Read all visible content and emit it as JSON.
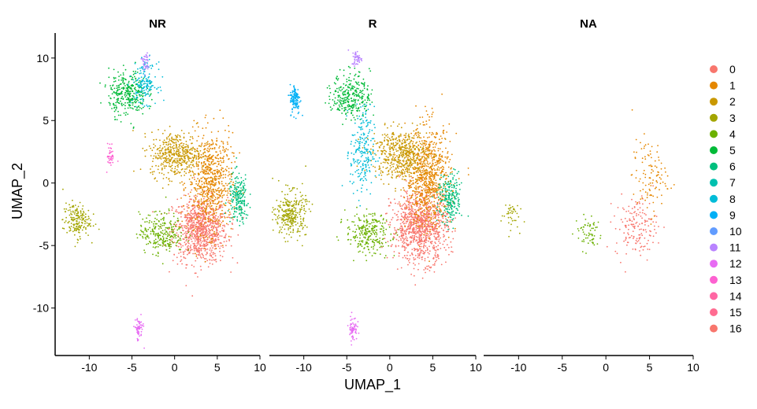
{
  "chart_data": {
    "type": "scatter",
    "subtype": "UMAP faceted by group",
    "xlabel": "UMAP_1",
    "ylabel": "UMAP_2",
    "xlim": [
      -14,
      10
    ],
    "ylim": [
      -13.8,
      12
    ],
    "x_ticks": [
      -10,
      -5,
      0,
      5,
      10
    ],
    "y_ticks": [
      -10,
      -5,
      0,
      5,
      10
    ],
    "facets": [
      "NR",
      "R",
      "NA"
    ],
    "legend": {
      "position": "right",
      "clusters": [
        {
          "label": "0",
          "color": "#F8766D"
        },
        {
          "label": "1",
          "color": "#E58700"
        },
        {
          "label": "2",
          "color": "#C99800"
        },
        {
          "label": "3",
          "color": "#A3A500"
        },
        {
          "label": "4",
          "color": "#6BB100"
        },
        {
          "label": "5",
          "color": "#00BA38"
        },
        {
          "label": "6",
          "color": "#00BF7D"
        },
        {
          "label": "7",
          "color": "#00C0AF"
        },
        {
          "label": "8",
          "color": "#00BCD8"
        },
        {
          "label": "9",
          "color": "#00B0F6"
        },
        {
          "label": "10",
          "color": "#619CFF"
        },
        {
          "label": "11",
          "color": "#B983FF"
        },
        {
          "label": "12",
          "color": "#E76BF3"
        },
        {
          "label": "13",
          "color": "#FD61D1"
        },
        {
          "label": "14",
          "color": "#FF67A4"
        },
        {
          "label": "15",
          "color": "#FF6C91"
        },
        {
          "label": "16",
          "color": "#F8766D"
        }
      ]
    },
    "clusters_approx": [
      {
        "cluster": "0",
        "facet": "NR",
        "cx": 3.0,
        "cy": -3.8,
        "sx": 1.6,
        "sy": 1.3,
        "n": 900
      },
      {
        "cluster": "1",
        "facet": "NR",
        "cx": 4.2,
        "cy": 0.0,
        "sx": 1.3,
        "sy": 2.0,
        "n": 700
      },
      {
        "cluster": "2",
        "facet": "NR",
        "cx": 0.2,
        "cy": 2.3,
        "sx": 1.5,
        "sy": 0.9,
        "n": 450
      },
      {
        "cluster": "3",
        "facet": "NR",
        "cx": -11.5,
        "cy": -3.0,
        "sx": 0.8,
        "sy": 0.7,
        "n": 180
      },
      {
        "cluster": "4",
        "facet": "NR",
        "cx": -1.5,
        "cy": -4.0,
        "sx": 1.3,
        "sy": 0.8,
        "n": 260
      },
      {
        "cluster": "5",
        "facet": "NR",
        "cx": -5.5,
        "cy": 7.2,
        "sx": 1.1,
        "sy": 0.9,
        "n": 320
      },
      {
        "cluster": "6",
        "facet": "NR",
        "cx": 7.5,
        "cy": -1.3,
        "sx": 0.6,
        "sy": 1.0,
        "n": 200
      },
      {
        "cluster": "8",
        "facet": "NR",
        "cx": -3.5,
        "cy": 8.0,
        "sx": 0.7,
        "sy": 0.8,
        "n": 160
      },
      {
        "cluster": "11",
        "facet": "NR",
        "cx": -3.4,
        "cy": 9.6,
        "sx": 0.25,
        "sy": 0.4,
        "n": 40
      },
      {
        "cluster": "12",
        "facet": "NR",
        "cx": -4.2,
        "cy": -11.7,
        "sx": 0.25,
        "sy": 0.5,
        "n": 60
      },
      {
        "cluster": "13",
        "facet": "NR",
        "cx": -7.5,
        "cy": 2.2,
        "sx": 0.2,
        "sy": 0.5,
        "n": 40
      },
      {
        "cluster": "0",
        "facet": "R",
        "cx": 3.5,
        "cy": -3.5,
        "sx": 1.6,
        "sy": 1.4,
        "n": 1000
      },
      {
        "cluster": "1",
        "facet": "R",
        "cx": 4.5,
        "cy": 0.5,
        "sx": 1.3,
        "sy": 2.0,
        "n": 800
      },
      {
        "cluster": "2",
        "facet": "R",
        "cx": 1.2,
        "cy": 2.3,
        "sx": 1.6,
        "sy": 1.0,
        "n": 500
      },
      {
        "cluster": "3",
        "facet": "R",
        "cx": -11.5,
        "cy": -2.5,
        "sx": 0.9,
        "sy": 0.9,
        "n": 300
      },
      {
        "cluster": "4",
        "facet": "R",
        "cx": -2.5,
        "cy": -4.0,
        "sx": 1.3,
        "sy": 0.8,
        "n": 260
      },
      {
        "cluster": "5",
        "facet": "R",
        "cx": -4.5,
        "cy": 7.0,
        "sx": 1.1,
        "sy": 0.9,
        "n": 300
      },
      {
        "cluster": "6",
        "facet": "R",
        "cx": 7.0,
        "cy": -1.3,
        "sx": 0.7,
        "sy": 1.0,
        "n": 220
      },
      {
        "cluster": "8",
        "facet": "R",
        "cx": -3.2,
        "cy": 2.5,
        "sx": 0.7,
        "sy": 1.8,
        "n": 220
      },
      {
        "cluster": "9",
        "facet": "R",
        "cx": -11.0,
        "cy": 6.7,
        "sx": 0.3,
        "sy": 0.6,
        "n": 120
      },
      {
        "cluster": "11",
        "facet": "R",
        "cx": -3.8,
        "cy": 10.0,
        "sx": 0.3,
        "sy": 0.3,
        "n": 50
      },
      {
        "cluster": "12",
        "facet": "R",
        "cx": -4.3,
        "cy": -11.6,
        "sx": 0.25,
        "sy": 0.5,
        "n": 60
      },
      {
        "cluster": "0",
        "facet": "NA",
        "cx": 3.5,
        "cy": -3.5,
        "sx": 1.2,
        "sy": 1.2,
        "n": 160
      },
      {
        "cluster": "1",
        "facet": "NA",
        "cx": 5.0,
        "cy": 0.5,
        "sx": 1.0,
        "sy": 1.5,
        "n": 110
      },
      {
        "cluster": "3",
        "facet": "NA",
        "cx": -11.0,
        "cy": -2.5,
        "sx": 0.5,
        "sy": 0.6,
        "n": 40
      },
      {
        "cluster": "4",
        "facet": "NA",
        "cx": -2.0,
        "cy": -4.0,
        "sx": 0.8,
        "sy": 0.7,
        "n": 60
      }
    ]
  }
}
